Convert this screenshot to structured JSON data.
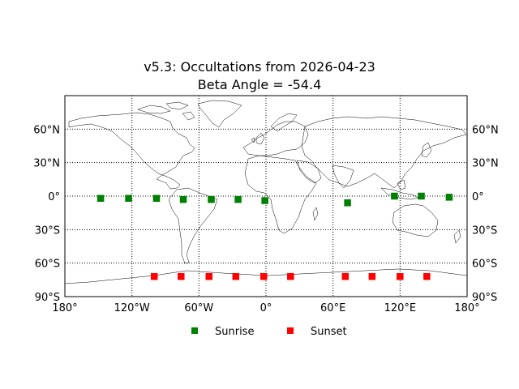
{
  "chart_data": {
    "type": "scatter",
    "title": "v5.3: Occultations from 2026-04-23",
    "subtitle": "Beta Angle = -54.4",
    "xlim": [
      -180,
      180
    ],
    "ylim": [
      -90,
      90
    ],
    "xticks": [
      {
        "value": -180,
        "label": "180°"
      },
      {
        "value": -120,
        "label": "120°W"
      },
      {
        "value": -60,
        "label": "60°W"
      },
      {
        "value": 0,
        "label": "0°"
      },
      {
        "value": 60,
        "label": "60°E"
      },
      {
        "value": 120,
        "label": "120°E"
      },
      {
        "value": 180,
        "label": "180°"
      }
    ],
    "yticks": [
      {
        "value": 60,
        "label": "60°N"
      },
      {
        "value": 30,
        "label": "30°N"
      },
      {
        "value": 0,
        "label": "0°"
      },
      {
        "value": -30,
        "label": "30°S"
      },
      {
        "value": -60,
        "label": "60°S"
      },
      {
        "value": -90,
        "label": "90°S"
      }
    ],
    "grid": true,
    "grid_style": "dotted",
    "basemap": "world coastlines and country borders",
    "legend_position": "bottom-center",
    "series": [
      {
        "name": "Sunrise",
        "color": "#008000",
        "marker": "square",
        "points": [
          {
            "lon": -148,
            "lat": -2
          },
          {
            "lon": -123,
            "lat": -2
          },
          {
            "lon": -98,
            "lat": -2
          },
          {
            "lon": -74,
            "lat": -3
          },
          {
            "lon": -49,
            "lat": -3
          },
          {
            "lon": -25,
            "lat": -3
          },
          {
            "lon": -1,
            "lat": -4
          },
          {
            "lon": 73,
            "lat": -6
          },
          {
            "lon": 115,
            "lat": 0
          },
          {
            "lon": 139,
            "lat": 0
          },
          {
            "lon": 164,
            "lat": -1
          }
        ]
      },
      {
        "name": "Sunset",
        "color": "#ff0000",
        "marker": "square",
        "points": [
          {
            "lon": -100,
            "lat": -72
          },
          {
            "lon": -76,
            "lat": -72
          },
          {
            "lon": -51,
            "lat": -72
          },
          {
            "lon": -27,
            "lat": -72
          },
          {
            "lon": -2,
            "lat": -72
          },
          {
            "lon": 22,
            "lat": -72
          },
          {
            "lon": 71,
            "lat": -72
          },
          {
            "lon": 95,
            "lat": -72
          },
          {
            "lon": 120,
            "lat": -72
          },
          {
            "lon": 144,
            "lat": -72
          }
        ]
      }
    ]
  }
}
